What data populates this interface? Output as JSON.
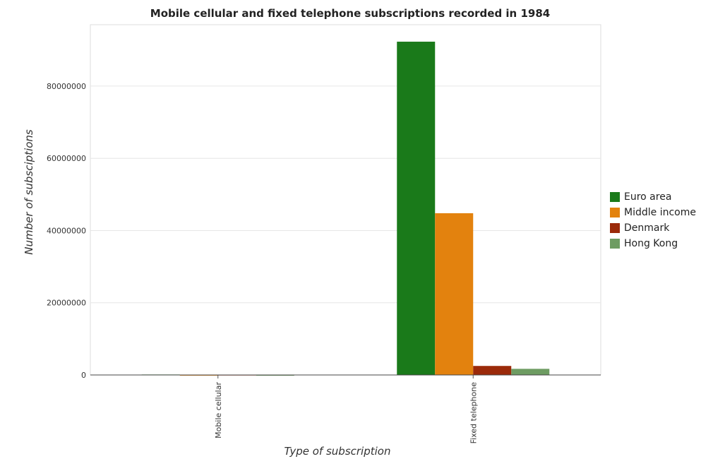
{
  "chart_data": {
    "type": "bar",
    "title": "Mobile cellular and fixed telephone subscriptions recorded in 1984",
    "xlabel": "Type of subscription",
    "ylabel": "Number of subsciptions",
    "categories": [
      "Mobile cellular",
      "Fixed telephone"
    ],
    "ylim": [
      0,
      97000000
    ],
    "yticks": [
      0,
      20000000,
      40000000,
      60000000,
      80000000
    ],
    "ytick_labels": [
      "0",
      "20000000",
      "40000000",
      "60000000",
      "80000000"
    ],
    "grid": true,
    "legend_position": "right",
    "series": [
      {
        "name": "Euro area",
        "color": "#1a7a1a",
        "values": [
          120000,
          92300000
        ]
      },
      {
        "name": "Middle income",
        "color": "#e3820e",
        "values": [
          15000,
          44800000
        ]
      },
      {
        "name": "Denmark",
        "color": "#9b2a0a",
        "values": [
          60000,
          2500000
        ]
      },
      {
        "name": "Hong Kong",
        "color": "#6e9c62",
        "values": [
          5000,
          1700000
        ]
      }
    ]
  }
}
